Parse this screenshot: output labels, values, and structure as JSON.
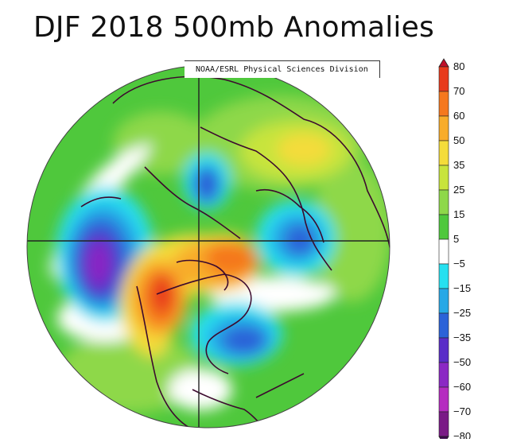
{
  "title": "DJF 2018 500mb Anomalies",
  "credit": "NOAA/ESRL Physical Sciences Division",
  "colorbar": {
    "labels": [
      "80",
      "70",
      "60",
      "50",
      "35",
      "25",
      "15",
      "5",
      "−5",
      "−15",
      "−25",
      "−35",
      "−50",
      "−60",
      "−70",
      "−80"
    ],
    "colors": [
      "#c0102a",
      "#e83a1c",
      "#f5781e",
      "#f8ac2a",
      "#f4dc3a",
      "#c8e43c",
      "#8ed84a",
      "#4fc83c",
      "#ffffff",
      "#26e0f0",
      "#27a8e6",
      "#2b62d8",
      "#5a2dc8",
      "#8b28c4",
      "#b52cc0",
      "#7a1a86",
      "#3c0a4e"
    ]
  }
}
